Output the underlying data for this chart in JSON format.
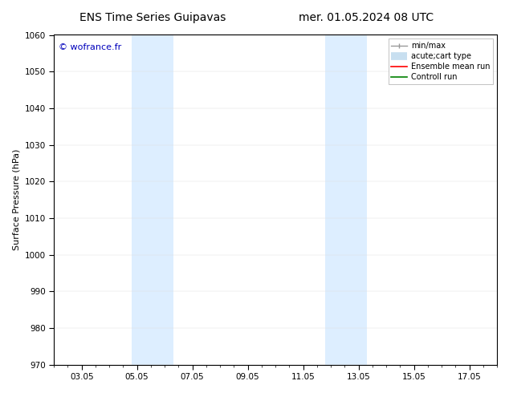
{
  "title_left": "ENS Time Series Guipavas",
  "title_right": "mer. 01.05.2024 08 UTC",
  "ylabel": "Surface Pressure (hPa)",
  "ylim": [
    970,
    1060
  ],
  "yticks": [
    970,
    980,
    990,
    1000,
    1010,
    1020,
    1030,
    1040,
    1050,
    1060
  ],
  "xtick_labels": [
    "03.05",
    "05.05",
    "07.05",
    "09.05",
    "11.05",
    "13.05",
    "15.05",
    "17.05"
  ],
  "xtick_positions": [
    2,
    4,
    6,
    8,
    10,
    12,
    14,
    16
  ],
  "xlim": [
    1,
    17
  ],
  "shaded_bands": [
    {
      "x_start": 3.8,
      "x_end": 4.5
    },
    {
      "x_start": 4.5,
      "x_end": 5.3
    },
    {
      "x_start": 10.8,
      "x_end": 11.5
    },
    {
      "x_start": 11.5,
      "x_end": 12.3
    }
  ],
  "shade_color": "#ddeeff",
  "watermark": "© wofrance.fr",
  "watermark_color": "#0000bb",
  "legend_entries": [
    {
      "label": "min/max",
      "color": "#999999",
      "lw": 1.0,
      "style": "minmax"
    },
    {
      "label": "acute;cart type",
      "color": "#c8dff0",
      "lw": 7,
      "style": "thick"
    },
    {
      "label": "Ensemble mean run",
      "color": "#ff0000",
      "lw": 1.2,
      "style": "line"
    },
    {
      "label": "Controll run",
      "color": "#008000",
      "lw": 1.2,
      "style": "line"
    }
  ],
  "bg_color": "#ffffff",
  "spine_color": "#000000",
  "tick_color": "#000000",
  "title_fontsize": 10,
  "ylabel_fontsize": 8,
  "tick_fontsize": 7.5,
  "watermark_fontsize": 8,
  "legend_fontsize": 7
}
